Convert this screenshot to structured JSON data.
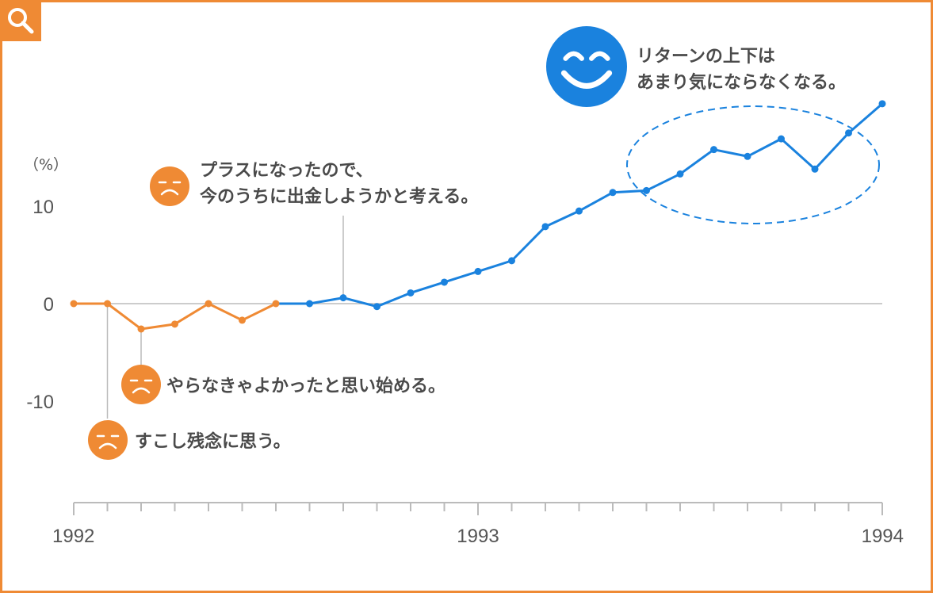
{
  "theme": {
    "accent": "#ef8a34",
    "series_before": "#ef8a34",
    "series_after": "#1a82de",
    "axis": "#bbbbbb",
    "text": "#555555"
  },
  "icons": {
    "corner": "search-icon",
    "sad": "sad-face-icon",
    "happy": "smiley-face-icon"
  },
  "chart_data": {
    "type": "line",
    "y_unit_label": "（%）",
    "y_ticks": [
      10,
      0,
      -10
    ],
    "ylim": [
      -20,
      20
    ],
    "x_tick_labels": [
      "1992",
      "1993",
      "1994"
    ],
    "x_range": [
      0,
      24
    ],
    "grid": false,
    "series": [
      {
        "color": "#ef8a34",
        "points": [
          [
            0,
            0
          ],
          [
            1,
            0
          ],
          [
            2,
            -2.6
          ],
          [
            3,
            -2.1
          ],
          [
            4,
            0
          ],
          [
            5,
            -1.7
          ],
          [
            6,
            0
          ]
        ]
      },
      {
        "color": "#1a82de",
        "points": [
          [
            6,
            0
          ],
          [
            7,
            0
          ],
          [
            8,
            0.6
          ],
          [
            9,
            -0.3
          ],
          [
            10,
            1.1
          ],
          [
            11,
            2.2
          ],
          [
            12,
            3.3
          ],
          [
            13,
            4.4
          ],
          [
            14,
            7.9
          ],
          [
            15,
            9.5
          ],
          [
            16,
            11.4
          ],
          [
            17,
            11.6
          ],
          [
            18,
            13.3
          ],
          [
            19,
            15.8
          ],
          [
            20,
            15.1
          ],
          [
            21,
            16.9
          ],
          [
            22,
            13.8
          ],
          [
            23,
            17.5
          ],
          [
            24,
            20.5
          ]
        ]
      }
    ],
    "annotations": [
      {
        "mood": "sad",
        "lines": [
          "すこし残念に思う。"
        ],
        "x": 1,
        "y": 0
      },
      {
        "mood": "sad",
        "lines": [
          "やらなきゃよかったと思い始める。"
        ],
        "x": 2,
        "y": -2.6
      },
      {
        "mood": "sad",
        "lines": [
          "プラスになったので、",
          "今のうちに出金しようかと考える。"
        ],
        "x": 8,
        "y": 0.6
      },
      {
        "mood": "happy",
        "lines": [
          "リターンの上下は",
          "あまり気にならなくなる。"
        ],
        "x": 20,
        "y": 14.5
      }
    ]
  }
}
